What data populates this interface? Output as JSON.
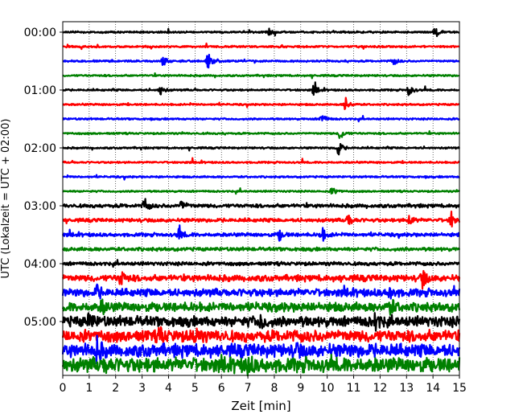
{
  "chart_data": {
    "type": "line",
    "title": "",
    "xlabel": "Zeit  [min]",
    "ylabel": "UTC (Lokalzeit = UTC + 02:00)",
    "xlim": [
      0,
      15
    ],
    "x_ticks": [
      "0",
      "1",
      "2",
      "3",
      "4",
      "5",
      "6",
      "7",
      "8",
      "9",
      "10",
      "11",
      "12",
      "13",
      "14",
      "15"
    ],
    "y_tick_labels": [
      "00:00",
      "01:00",
      "02:00",
      "03:00",
      "04:00",
      "05:00"
    ],
    "grid": "vertical dotted",
    "colors": [
      "#000000",
      "#ff0000",
      "#0000ff",
      "#008000"
    ],
    "traces_per_hour": 4,
    "trace_minutes": 15,
    "trace_count": 24,
    "events": [
      {
        "trace": 0,
        "minute": 14.1,
        "amp": 0.35
      },
      {
        "trace": 0,
        "minute": 7.8,
        "amp": 0.2
      },
      {
        "trace": 2,
        "minute": 5.5,
        "amp": 0.55
      },
      {
        "trace": 2,
        "minute": 3.8,
        "amp": 0.3
      },
      {
        "trace": 2,
        "minute": 12.5,
        "amp": 0.3
      },
      {
        "trace": 4,
        "minute": 3.7,
        "amp": 0.35
      },
      {
        "trace": 4,
        "minute": 9.5,
        "amp": 0.35
      },
      {
        "trace": 4,
        "minute": 13.1,
        "amp": 0.4
      },
      {
        "trace": 5,
        "minute": 10.7,
        "amp": 0.45
      },
      {
        "trace": 6,
        "minute": 9.8,
        "amp": 0.35
      },
      {
        "trace": 7,
        "minute": 10.5,
        "amp": 0.45
      },
      {
        "trace": 8,
        "minute": 10.4,
        "amp": 0.6
      },
      {
        "trace": 11,
        "minute": 10.2,
        "amp": 0.3
      },
      {
        "trace": 12,
        "minute": 3.1,
        "amp": 0.55
      },
      {
        "trace": 12,
        "minute": 4.5,
        "amp": 0.35
      },
      {
        "trace": 13,
        "minute": 10.8,
        "amp": 0.45
      },
      {
        "trace": 13,
        "minute": 13.1,
        "amp": 0.4
      },
      {
        "trace": 13,
        "minute": 14.7,
        "amp": 0.55
      },
      {
        "trace": 14,
        "minute": 4.4,
        "amp": 0.4
      },
      {
        "trace": 14,
        "minute": 8.2,
        "amp": 0.35
      },
      {
        "trace": 14,
        "minute": 9.8,
        "amp": 0.5
      },
      {
        "trace": 17,
        "minute": 2.2,
        "amp": 0.55
      },
      {
        "trace": 17,
        "minute": 13.6,
        "amp": 0.65
      },
      {
        "trace": 18,
        "minute": 1.3,
        "amp": 0.4
      },
      {
        "trace": 18,
        "minute": 12.4,
        "amp": 0.4
      },
      {
        "trace": 19,
        "minute": 1.5,
        "amp": 0.4
      },
      {
        "trace": 19,
        "minute": 12.4,
        "amp": 0.45
      },
      {
        "trace": 20,
        "minute": 11.8,
        "amp": 0.6
      },
      {
        "trace": 20,
        "minute": 7.5,
        "amp": 0.45
      },
      {
        "trace": 20,
        "minute": 1.0,
        "amp": 0.45
      },
      {
        "trace": 21,
        "minute": 3.7,
        "amp": 0.5
      },
      {
        "trace": 21,
        "minute": 5.0,
        "amp": 0.5
      },
      {
        "trace": 22,
        "minute": 1.3,
        "amp": 0.65
      },
      {
        "trace": 22,
        "minute": 8.8,
        "amp": 0.4
      },
      {
        "trace": 23,
        "minute": 7.0,
        "amp": 0.5
      },
      {
        "trace": 23,
        "minute": 1.6,
        "amp": 0.35
      }
    ]
  }
}
